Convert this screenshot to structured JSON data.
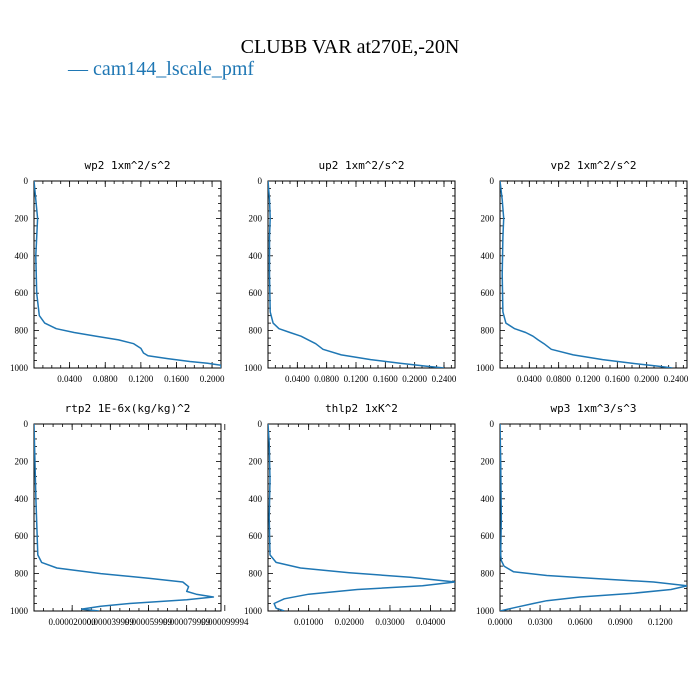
{
  "title": "CLUBB VAR at270E,-20N",
  "legend": {
    "entries": [
      {
        "name": "cam144_lscale_pmf",
        "color": "#1f77b4"
      }
    ]
  },
  "chart_data": [
    {
      "type": "line",
      "title": "wp2  1xm^2/s^2",
      "xlim": [
        0,
        0.21
      ],
      "ylim": [
        1000,
        0
      ],
      "x_ticks": [
        "0.0400",
        "0.0800",
        "0.1200",
        "0.1600",
        "0.2000"
      ],
      "x_tick_values": [
        0.04,
        0.08,
        0.12,
        0.16,
        0.2
      ],
      "y_ticks": [
        "0",
        "200",
        "400",
        "600",
        "800",
        "1000"
      ],
      "series": [
        {
          "name": "cam144_lscale_pmf",
          "x": [
            0,
            0.002,
            0.004,
            0.003,
            0.002,
            0.003,
            0.006,
            0.012,
            0.025,
            0.045,
            0.07,
            0.095,
            0.112,
            0.12,
            0.123,
            0.128,
            0.15,
            0.175,
            0.195,
            0.21,
            0.21
          ],
          "y": [
            0,
            100,
            200,
            300,
            400,
            600,
            720,
            760,
            790,
            810,
            830,
            850,
            870,
            895,
            920,
            935,
            950,
            965,
            975,
            985,
            1000
          ]
        }
      ]
    },
    {
      "type": "line",
      "title": "up2  1xm^2/s^2",
      "xlim": [
        0,
        0.255
      ],
      "ylim": [
        1000,
        0
      ],
      "x_ticks": [
        "0.0400",
        "0.0800",
        "0.1200",
        "0.1600",
        "0.2000",
        "0.2400"
      ],
      "x_tick_values": [
        0.04,
        0.08,
        0.12,
        0.16,
        0.2,
        0.24
      ],
      "y_ticks": [
        "0",
        "200",
        "400",
        "600",
        "800",
        "1000"
      ],
      "series": [
        {
          "name": "cam144_lscale_pmf",
          "x": [
            0,
            0.002,
            0.003,
            0.002,
            0.002,
            0.003,
            0.007,
            0.015,
            0.03,
            0.045,
            0.055,
            0.065,
            0.075,
            0.1,
            0.14,
            0.18,
            0.215,
            0.24
          ],
          "y": [
            0,
            100,
            200,
            300,
            500,
            700,
            760,
            790,
            810,
            830,
            850,
            870,
            900,
            930,
            955,
            975,
            990,
            1000
          ]
        }
      ]
    },
    {
      "type": "line",
      "title": "vp2  1xm^2/s^2",
      "xlim": [
        0,
        0.255
      ],
      "ylim": [
        1000,
        0
      ],
      "x_ticks": [
        "0.0400",
        "0.0800",
        "0.1200",
        "0.1600",
        "0.2000",
        "0.2400"
      ],
      "x_tick_values": [
        0.04,
        0.08,
        0.12,
        0.16,
        0.2,
        0.24
      ],
      "y_ticks": [
        "0",
        "200",
        "400",
        "600",
        "800",
        "1000"
      ],
      "series": [
        {
          "name": "cam144_lscale_pmf",
          "x": [
            0,
            0.003,
            0.005,
            0.004,
            0.003,
            0.004,
            0.008,
            0.02,
            0.035,
            0.045,
            0.052,
            0.06,
            0.07,
            0.1,
            0.14,
            0.18,
            0.215,
            0.235
          ],
          "y": [
            0,
            100,
            200,
            300,
            500,
            700,
            760,
            790,
            810,
            830,
            850,
            870,
            900,
            930,
            955,
            975,
            990,
            1000
          ]
        }
      ]
    },
    {
      "type": "line",
      "title": "rtp2  1E-6x(kg/kg)^2",
      "xlim": [
        0,
        9.8e-05
      ],
      "ylim": [
        1000,
        0
      ],
      "x_ticks": [
        "0.000020000",
        "0.000039999",
        "0.000059999",
        "0.000079999",
        "0.000099994"
      ],
      "x_tick_values": [
        2e-05,
        4e-05,
        6e-05,
        8e-05,
        0.0001
      ],
      "y_ticks": [
        "0",
        "200",
        "400",
        "600",
        "800",
        "1000"
      ],
      "series": [
        {
          "name": "cam144_lscale_pmf",
          "x": [
            0,
            1e-06,
            2e-06,
            4e-06,
            1.2e-05,
            3.5e-05,
            6e-05,
            7.8e-05,
            8.1e-05,
            8e-05,
            8.5e-05,
            9.4e-05,
            8e-05,
            5e-05,
            3.5e-05,
            2.5e-05,
            3.4e-05
          ],
          "y": [
            0,
            400,
            700,
            740,
            770,
            800,
            825,
            845,
            870,
            895,
            910,
            925,
            940,
            960,
            975,
            990,
            1000
          ]
        }
      ]
    },
    {
      "type": "line",
      "title": "thlp2  1xK^2",
      "xlim": [
        0,
        0.046
      ],
      "ylim": [
        1000,
        0
      ],
      "x_ticks": [
        "0.01000",
        "0.02000",
        "0.03000",
        "0.04000"
      ],
      "x_tick_values": [
        0.01,
        0.02,
        0.03,
        0.04
      ],
      "y_ticks": [
        "0",
        "200",
        "400",
        "600",
        "800",
        "1000"
      ],
      "series": [
        {
          "name": "cam144_lscale_pmf",
          "x": [
            0,
            0.0003,
            0.0005,
            0.0003,
            0.0005,
            0.002,
            0.008,
            0.02,
            0.035,
            0.046,
            0.038,
            0.022,
            0.01,
            0.004,
            0.0015,
            0.002,
            0.004
          ],
          "y": [
            0,
            100,
            300,
            500,
            700,
            740,
            770,
            795,
            820,
            845,
            865,
            885,
            910,
            935,
            960,
            985,
            1000
          ]
        }
      ]
    },
    {
      "type": "line",
      "title": "wp3  1xm^3/s^3",
      "xlim": [
        0,
        0.14
      ],
      "ylim": [
        1000,
        0
      ],
      "x_ticks": [
        "0.0000",
        "0.0300",
        "0.0600",
        "0.0900",
        "0.1200"
      ],
      "x_tick_values": [
        0,
        0.03,
        0.06,
        0.09,
        0.12
      ],
      "y_ticks": [
        "0",
        "200",
        "400",
        "600",
        "800",
        "1000"
      ],
      "series": [
        {
          "name": "cam144_lscale_pmf",
          "x": [
            0,
            0.0005,
            0.001,
            0.0005,
            0.001,
            0.003,
            0.01,
            0.035,
            0.08,
            0.115,
            0.14,
            0.128,
            0.1,
            0.06,
            0.035,
            0.025,
            0.012,
            0
          ],
          "y": [
            0,
            200,
            500,
            700,
            730,
            760,
            790,
            810,
            830,
            845,
            865,
            885,
            905,
            925,
            945,
            960,
            980,
            1000
          ]
        }
      ]
    }
  ]
}
